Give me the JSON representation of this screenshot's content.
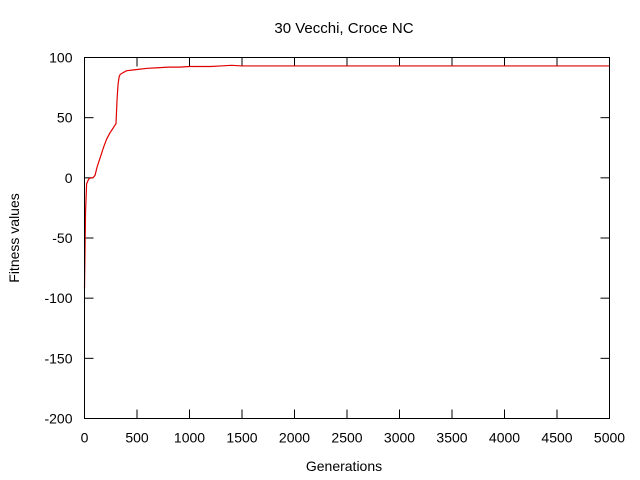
{
  "chart_data": {
    "type": "line",
    "title": "30 Vecchi, Croce NC",
    "xlabel": "Generations",
    "ylabel": "Fitness values",
    "xlim": [
      0,
      5000
    ],
    "ylim": [
      -200,
      100
    ],
    "xticks": [
      0,
      500,
      1000,
      1500,
      2000,
      2500,
      3000,
      3500,
      4000,
      4500,
      5000
    ],
    "yticks": [
      -200,
      -150,
      -100,
      -50,
      0,
      50,
      100
    ],
    "grid": false,
    "series": [
      {
        "color": "#e00000",
        "x": [
          0,
          5,
          10,
          20,
          40,
          60,
          80,
          100,
          120,
          150,
          180,
          210,
          240,
          270,
          300,
          310,
          320,
          330,
          340,
          360,
          380,
          400,
          450,
          500,
          600,
          700,
          800,
          900,
          1000,
          1100,
          1200,
          1300,
          1400,
          1500,
          1700,
          2000,
          2500,
          3000,
          3500,
          4000,
          4500,
          5000
        ],
        "y": [
          -92,
          -60,
          -28,
          -5,
          -1,
          0,
          0,
          2,
          9,
          17,
          25,
          32,
          37,
          41,
          45,
          65,
          78,
          84,
          86,
          87,
          88,
          89,
          89.5,
          90,
          91,
          91.5,
          92,
          92,
          92.5,
          92.5,
          92.5,
          93,
          93.5,
          93,
          93,
          93,
          93,
          93,
          93,
          93,
          93,
          93
        ]
      }
    ]
  }
}
